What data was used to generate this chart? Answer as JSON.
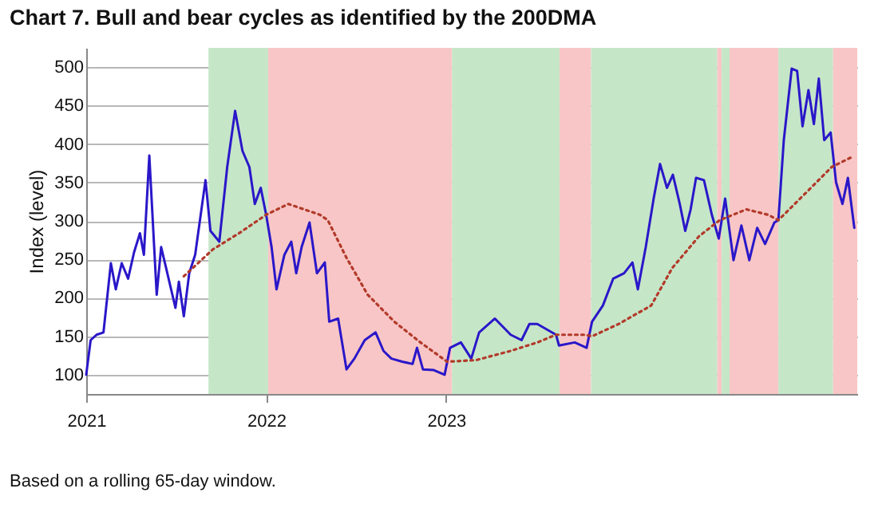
{
  "chart_data": {
    "type": "line",
    "title": "Chart 7. Bull and bear cycles as identified by the 200DMA",
    "ylabel": "Index (level)",
    "annotations": [
      "Based on a rolling 65-day window."
    ],
    "xlim": [
      "2021-01-01",
      "2025-04-14"
    ],
    "xticks": [
      "2021",
      "2022",
      "2023"
    ],
    "ylim": [
      75,
      525
    ],
    "yticks": [
      100,
      150,
      200,
      250,
      300,
      350,
      400,
      450,
      500
    ],
    "grid": "y",
    "bands": [
      {
        "axis": "x",
        "from": "2021-09-06",
        "to": "2022-01-05",
        "color": "#c6e6c8"
      },
      {
        "axis": "x",
        "from": "2022-01-05",
        "to": "2023-01-13",
        "color": "#f8c6c6"
      },
      {
        "axis": "x",
        "from": "2023-01-13",
        "to": "2023-08-19",
        "color": "#c6e6c8"
      },
      {
        "axis": "x",
        "from": "2023-08-19",
        "to": "2023-10-22",
        "color": "#f8c6c6"
      },
      {
        "axis": "x",
        "from": "2023-10-22",
        "to": "2024-07-04",
        "color": "#c6e6c8"
      },
      {
        "axis": "x",
        "from": "2024-07-04",
        "to": "2024-07-13",
        "color": "#f8c6c6"
      },
      {
        "axis": "x",
        "from": "2024-07-13",
        "to": "2024-07-29",
        "color": "#c6e6c8"
      },
      {
        "axis": "x",
        "from": "2024-07-29",
        "to": "2024-11-05",
        "color": "#f8c6c6"
      },
      {
        "axis": "x",
        "from": "2024-11-05",
        "to": "2025-02-24",
        "color": "#c6e6c8"
      },
      {
        "axis": "x",
        "from": "2025-02-24",
        "to": "2025-04-14",
        "color": "#f8c6c6"
      }
    ],
    "series": [
      {
        "color": "#2a17c9",
        "line_style": "solid",
        "x": [
          "2021-01-01",
          "2021-01-10",
          "2021-01-22",
          "2021-02-05",
          "2021-02-20",
          "2021-03-02",
          "2021-03-14",
          "2021-03-27",
          "2021-04-08",
          "2021-04-20",
          "2021-04-28",
          "2021-05-09",
          "2021-05-24",
          "2021-06-02",
          "2021-06-12",
          "2021-07-01",
          "2021-07-08",
          "2021-07-18",
          "2021-07-29",
          "2021-08-10",
          "2021-08-31",
          "2021-09-10",
          "2021-09-28",
          "2021-10-14",
          "2021-10-30",
          "2021-11-14",
          "2021-11-28",
          "2021-12-09",
          "2021-12-21",
          "2022-01-01",
          "2022-01-12",
          "2022-01-22",
          "2022-02-07",
          "2022-02-21",
          "2022-03-03",
          "2022-03-14",
          "2022-03-30",
          "2022-04-14",
          "2022-04-30",
          "2022-05-09",
          "2022-05-27",
          "2022-06-13",
          "2022-06-29",
          "2022-07-20",
          "2022-08-11",
          "2022-08-27",
          "2022-09-12",
          "2022-10-04",
          "2022-10-25",
          "2022-11-03",
          "2022-11-15",
          "2022-12-07",
          "2022-12-29",
          "2023-01-09",
          "2023-01-31",
          "2023-02-21",
          "2023-03-09",
          "2023-04-10",
          "2023-05-12",
          "2023-06-03",
          "2023-06-19",
          "2023-07-05",
          "2023-08-12",
          "2023-08-18",
          "2023-09-19",
          "2023-10-13",
          "2023-10-24",
          "2023-11-15",
          "2023-12-06",
          "2023-12-28",
          "2024-01-14",
          "2024-01-25",
          "2024-02-10",
          "2024-02-26",
          "2024-03-10",
          "2024-03-24",
          "2024-04-05",
          "2024-04-19",
          "2024-04-30",
          "2024-05-11",
          "2024-05-22",
          "2024-06-07",
          "2024-06-23",
          "2024-07-07",
          "2024-07-20",
          "2024-08-06",
          "2024-08-22",
          "2024-09-07",
          "2024-09-23",
          "2024-10-09",
          "2024-10-28",
          "2024-11-05",
          "2024-11-16",
          "2024-12-02",
          "2024-12-13",
          "2024-12-24",
          "2025-01-05",
          "2025-01-16",
          "2025-01-26",
          "2025-02-06",
          "2025-02-19",
          "2025-03-02",
          "2025-03-15",
          "2025-03-26",
          "2025-04-08"
        ],
        "values": [
          100,
          145,
          152,
          155,
          245,
          211,
          245,
          225,
          259,
          284,
          256,
          385,
          204,
          266,
          239,
          187,
          221,
          176,
          232,
          256,
          353,
          287,
          273,
          370,
          443,
          391,
          370,
          322,
          343,
          308,
          266,
          211,
          256,
          273,
          232,
          266,
          298,
          232,
          246,
          169,
          173,
          107,
          121,
          145,
          155,
          131,
          121,
          117,
          114,
          135,
          107,
          106,
          100,
          135,
          142,
          121,
          155,
          173,
          152,
          145,
          166,
          166,
          152,
          138,
          142,
          135,
          169,
          190,
          225,
          232,
          246,
          211,
          266,
          329,
          374,
          343,
          360,
          322,
          287,
          315,
          356,
          353,
          308,
          277,
          329,
          249,
          294,
          249,
          291,
          270,
          298,
          301,
          405,
          498,
          495,
          423,
          470,
          426,
          485,
          405,
          415,
          350,
          322,
          356,
          291
        ]
      },
      {
        "color": "#b23a2a",
        "line_style": "dotted",
        "x": [
          "2021-07-18",
          "2021-09-15",
          "2021-11-07",
          "2022-01-01",
          "2022-02-15",
          "2022-04-20",
          "2022-05-06",
          "2022-06-13",
          "2022-07-26",
          "2022-09-18",
          "2022-11-10",
          "2023-01-03",
          "2023-03-03",
          "2023-05-12",
          "2023-07-05",
          "2023-08-12",
          "2023-10-10",
          "2023-10-24",
          "2023-12-17",
          "2024-02-21",
          "2024-04-04",
          "2024-05-28",
          "2024-07-09",
          "2024-09-01",
          "2024-10-15",
          "2024-11-05",
          "2025-01-10",
          "2025-02-21",
          "2025-04-06"
        ],
        "values": [
          228,
          263,
          284,
          308,
          322,
          308,
          301,
          252,
          204,
          169,
          142,
          117,
          119,
          131,
          142,
          152,
          152,
          150,
          166,
          190,
          239,
          280,
          301,
          315,
          308,
          301,
          343,
          370,
          384
        ]
      }
    ]
  }
}
